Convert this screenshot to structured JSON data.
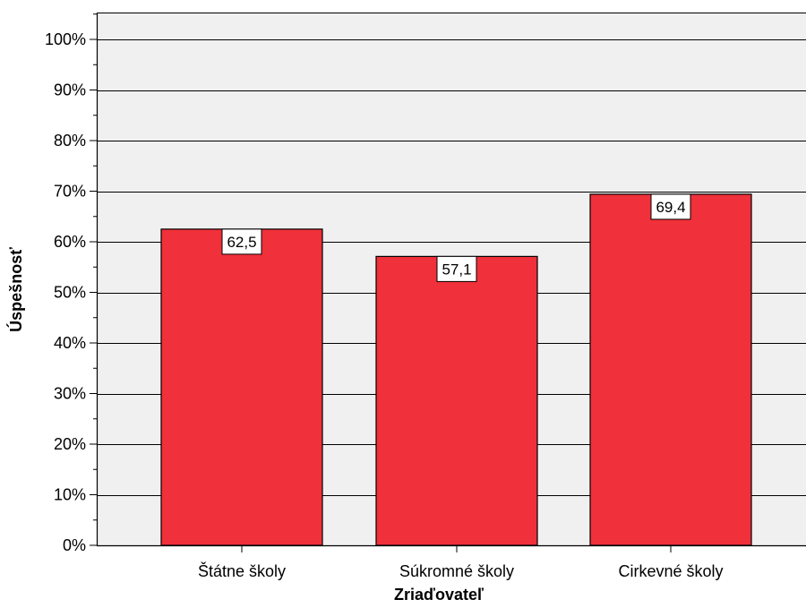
{
  "chart_data": {
    "type": "bar",
    "title": "",
    "xlabel": "Zriaďovateľ",
    "ylabel": "Úspešnosť",
    "categories": [
      "Štátne školy",
      "Súkromné školy",
      "Cirkevné školy"
    ],
    "values": [
      62.5,
      57.1,
      69.4
    ],
    "data_labels": [
      "62,5",
      "57,1",
      "69,4"
    ],
    "ylim": [
      0,
      100
    ],
    "y_ticks": [
      0,
      10,
      20,
      30,
      40,
      50,
      60,
      70,
      80,
      90,
      100
    ],
    "y_tick_labels": [
      "0%",
      "10%",
      "20%",
      "30%",
      "40%",
      "50%",
      "60%",
      "70%",
      "80%",
      "90%",
      "100%"
    ],
    "grid": true,
    "legend": "none",
    "colors": {
      "bar_fill": "#f0303a",
      "plot_background": "#f0f0f0",
      "grid_line": "#000000"
    }
  }
}
